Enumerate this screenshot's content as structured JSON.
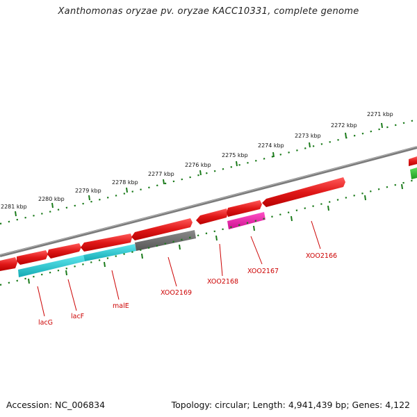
{
  "title": "Xanthomonas oryzae pv. oryzae KACC10331, complete genome",
  "footer": {
    "accession": "Accession: NC_006834",
    "topology": "Topology: circular; Length: 4,941,439 bp; Genes: 4,122"
  },
  "colors": {
    "forward_gene": "#e41a1c",
    "cyan_gene": "#1fc7cf",
    "gray_gene": "#6e6e6e",
    "magenta_gene": "#e0209c",
    "green_gene": "#33bb33",
    "backbone": "#808080",
    "ticks": "#1a7a1a",
    "labels": "#cc0000"
  },
  "kbp_ticks": [
    "2271 kbp",
    "2272 kbp",
    "2273 kbp",
    "2274 kbp",
    "2275 kbp",
    "2276 kbp",
    "2277 kbp",
    "2278 kbp",
    "2279 kbp",
    "2280 kbp",
    "2281 kbp"
  ],
  "gene_labels": [
    "lacG",
    "lacF",
    "malE",
    "XOO2169",
    "XOO2168",
    "XOO2167",
    "XOO2166"
  ]
}
